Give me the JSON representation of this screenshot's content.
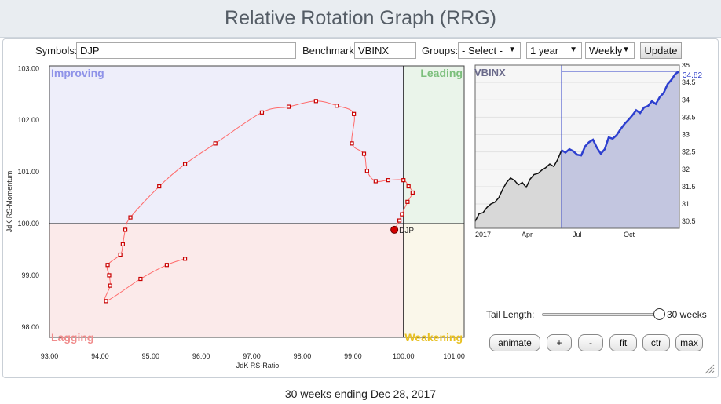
{
  "title": "Relative Rotation Graph (RRG)",
  "controls": {
    "symbols_label": "Symbols:",
    "symbols_value": "DJP",
    "benchmark_label": "Benchmark:",
    "benchmark_value": "VBINX",
    "groups_label": "Groups:",
    "groups_value": "- Select -",
    "period_value": "1 year",
    "frequency_value": "Weekly",
    "update_label": "Update"
  },
  "rrg": {
    "quadrants": {
      "improving": "Improving",
      "leading": "Leading",
      "lagging": "Lagging",
      "weakening": "Weakening"
    },
    "xlabel": "JdK RS-Ratio",
    "ylabel": "JdK RS-Momentum",
    "x_ticks": [
      "93.00",
      "94.00",
      "95.00",
      "96.00",
      "97.00",
      "98.00",
      "99.00",
      "100.00",
      "101.00"
    ],
    "y_ticks": [
      "103.00",
      "102.00",
      "101.00",
      "100.00",
      "99.00",
      "98.00"
    ],
    "symbol_label": "DJP",
    "colors": {
      "tail": "#ff6a6a",
      "marker": "#d40000",
      "improving": "#eeeefa",
      "leading": "#eaf4ea",
      "lagging": "#fbeaea",
      "weakening": "#faf7ea"
    }
  },
  "price_chart": {
    "label": "VBINX",
    "last_value": "34.82",
    "y_ticks": [
      "35",
      "34.5",
      "34",
      "33.5",
      "33",
      "32.5",
      "32",
      "31.5",
      "31",
      "30.5"
    ],
    "x_ticks": [
      "2017",
      "Apr",
      "Jul",
      "Oct"
    ]
  },
  "tail": {
    "label": "Tail Length:",
    "value": "30 weeks"
  },
  "buttons": {
    "animate": "animate",
    "plus": "+",
    "minus": "-",
    "fit": "fit",
    "ctr": "ctr",
    "max": "max"
  },
  "footer": "30 weeks ending Dec 28, 2017",
  "chart_data": [
    {
      "type": "scatter",
      "title": "Relative Rotation Graph (RRG)",
      "xlabel": "JdK RS-Ratio",
      "ylabel": "JdK RS-Momentum",
      "xlim": [
        93.0,
        101.2
      ],
      "ylim": [
        97.8,
        103.05
      ],
      "series": [
        {
          "name": "DJP",
          "x": [
            95.68,
            95.32,
            94.8,
            94.12,
            94.2,
            94.18,
            94.15,
            94.4,
            94.45,
            94.5,
            94.6,
            95.17,
            95.68,
            96.28,
            97.2,
            97.73,
            98.27,
            98.68,
            99.02,
            98.98,
            99.22,
            99.28,
            99.45,
            99.7,
            100.0,
            100.1,
            100.18,
            100.08,
            99.97,
            99.92,
            99.82
          ],
          "y": [
            99.32,
            99.2,
            98.93,
            98.5,
            98.8,
            99.0,
            99.2,
            99.4,
            99.6,
            99.88,
            100.12,
            100.72,
            101.15,
            101.55,
            102.15,
            102.26,
            102.37,
            102.28,
            102.12,
            101.55,
            101.35,
            101.02,
            100.82,
            100.84,
            100.84,
            100.72,
            100.6,
            100.42,
            100.18,
            100.06,
            99.88
          ]
        }
      ]
    },
    {
      "type": "area",
      "title": "VBINX",
      "x_labels": [
        "2017",
        "Apr",
        "Jul",
        "Oct"
      ],
      "ylim": [
        30.3,
        35.0
      ],
      "highlight_start_index": 22,
      "series": [
        {
          "name": "VBINX",
          "values": [
            30.5,
            30.72,
            30.75,
            30.9,
            31.0,
            31.05,
            31.18,
            31.42,
            31.62,
            31.75,
            31.68,
            31.55,
            31.62,
            31.48,
            31.72,
            31.85,
            31.88,
            31.98,
            32.05,
            32.15,
            32.08,
            32.28,
            32.55,
            32.48,
            32.58,
            32.52,
            32.42,
            32.4,
            32.66,
            32.78,
            32.85,
            32.62,
            32.45,
            32.58,
            32.92,
            32.88,
            32.98,
            33.15,
            33.3,
            33.42,
            33.55,
            33.7,
            33.62,
            33.78,
            33.82,
            33.96,
            33.88,
            34.08,
            34.2,
            34.45,
            34.58,
            34.75,
            34.82
          ]
        }
      ]
    }
  ]
}
